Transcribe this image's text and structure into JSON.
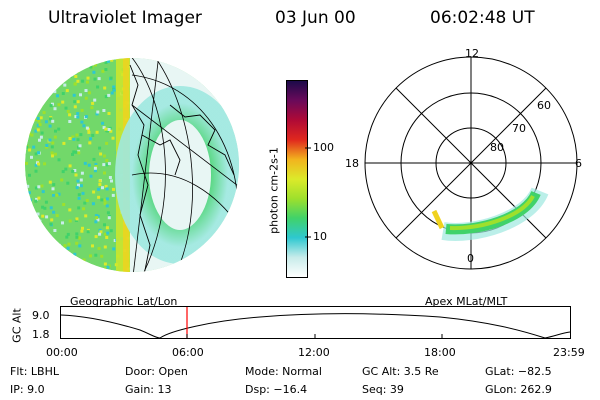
{
  "header": {
    "instrument": "Ultraviolet Imager",
    "date": "03 Jun 00",
    "time": "06:02:48 UT"
  },
  "colorbar": {
    "label": "photon cm-2s-1",
    "ticks": [
      "100",
      "10"
    ]
  },
  "left_panel": {
    "caption": "Geographic Lat/Lon"
  },
  "right_panel": {
    "caption": "Apex MLat/MLT",
    "mlt_labels": {
      "top": "12",
      "left": "18",
      "right": "6",
      "bottom": "0"
    },
    "lat_labels": [
      "60",
      "70",
      "80"
    ]
  },
  "timeline": {
    "ylabel": "GC Alt",
    "y_ticks": [
      "9.0",
      "1.8"
    ],
    "x_ticks": [
      "00:00",
      "06:00",
      "12:00",
      "18:00",
      "23:59"
    ]
  },
  "info": {
    "row1": {
      "filter": "Flt: LBHL",
      "door": "Door: Open",
      "mode": "Mode: Normal",
      "gc_alt": "GC Alt: 3.5 Re",
      "glat": "GLat: −82.5"
    },
    "row2": {
      "ip": "IP: 9.0",
      "gain": "Gain: 13",
      "dsp": "Dsp: −16.4",
      "seq": "Seq: 39",
      "glon": "GLon: 262.9"
    }
  },
  "colors": {
    "colorbar_stops": [
      "#ffffff",
      "#c8ecea",
      "#2ec8d0",
      "#40d26a",
      "#9ee02c",
      "#dcea2a",
      "#f2b31e",
      "#e0281e",
      "#b00a36",
      "#6a0a5a",
      "#1c0a4a"
    ],
    "time_marker": "#ff0000"
  }
}
